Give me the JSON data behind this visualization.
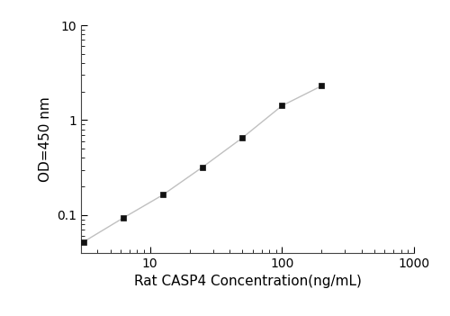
{
  "x": [
    3.125,
    6.25,
    12.5,
    25,
    50,
    100,
    200
  ],
  "y": [
    0.052,
    0.093,
    0.163,
    0.32,
    0.65,
    1.42,
    2.3
  ],
  "xlabel": "Rat CASP4 Concentration(ng/mL)",
  "ylabel": "OD=450 nm",
  "xlim": [
    3,
    1000
  ],
  "ylim": [
    0.04,
    10
  ],
  "line_color": "#c0c0c0",
  "marker_color": "#111111",
  "marker": "s",
  "marker_size": 5,
  "line_width": 1.0,
  "background_color": "#ffffff",
  "xticks": [
    10,
    100,
    1000
  ],
  "xtick_labels": [
    "10",
    "100",
    "1000"
  ],
  "yticks": [
    0.1,
    1,
    10
  ],
  "ytick_labels": [
    "0.1",
    "1",
    "10"
  ],
  "xlabel_fontsize": 11,
  "ylabel_fontsize": 11,
  "tick_labelsize": 10
}
